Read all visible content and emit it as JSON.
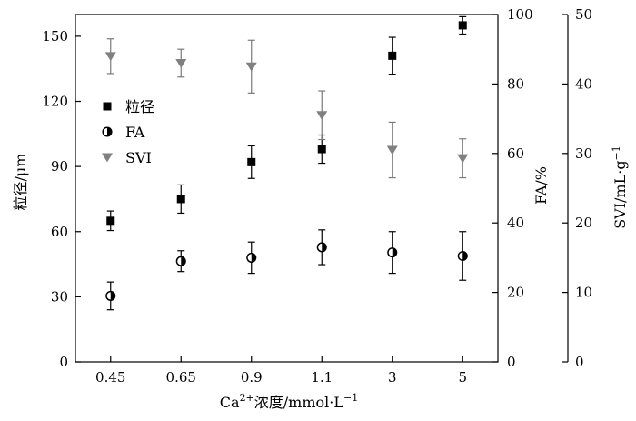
{
  "chart_data": {
    "type": "scatter",
    "categories": [
      "0.45",
      "0.65",
      "0.9",
      "1.1",
      "3",
      "5"
    ],
    "xlabel": "Ca²⁺浓度/mmol·L⁻¹",
    "xlabel_parts": {
      "base": "Ca",
      "sup1": "2+",
      "mid": "浓度/mmol·L",
      "sup2": "−1"
    },
    "axes": {
      "left": {
        "label": "粒径/μm",
        "ylim": [
          0,
          160
        ],
        "ticks": [
          0,
          30,
          60,
          90,
          120,
          150
        ]
      },
      "right1": {
        "label": "FA/%",
        "ylim": [
          0,
          100
        ],
        "ticks": [
          0,
          20,
          40,
          60,
          80,
          100
        ]
      },
      "right2": {
        "label": "SVI/mL·g⁻¹",
        "label_parts": {
          "base": "SVI/mL·g",
          "sup": "−1"
        },
        "ylim": [
          0,
          50
        ],
        "ticks": [
          0,
          10,
          20,
          30,
          40,
          50
        ]
      }
    },
    "series": [
      {
        "name": "粒径",
        "axis": "left",
        "marker": "square",
        "color": "#000000",
        "values": [
          65,
          75,
          92,
          98,
          141,
          155
        ],
        "errors": [
          4.5,
          6.5,
          7.5,
          6.5,
          8.5,
          4
        ]
      },
      {
        "name": "FA",
        "axis": "right1",
        "marker": "half-circle",
        "color": "#000000",
        "values": [
          19,
          29,
          30,
          33,
          31.5,
          30.5
        ],
        "errors": [
          4,
          3,
          4.5,
          5,
          6,
          7
        ]
      },
      {
        "name": "SVI",
        "axis": "right2",
        "marker": "triangle-down",
        "color": "#808080",
        "values": [
          44,
          43,
          42.5,
          35.5,
          30.5,
          29.3
        ],
        "errors": [
          2.5,
          2,
          3.8,
          3.5,
          4,
          2.8
        ]
      }
    ],
    "legend": {
      "position": "left-middle"
    },
    "grid": false
  }
}
